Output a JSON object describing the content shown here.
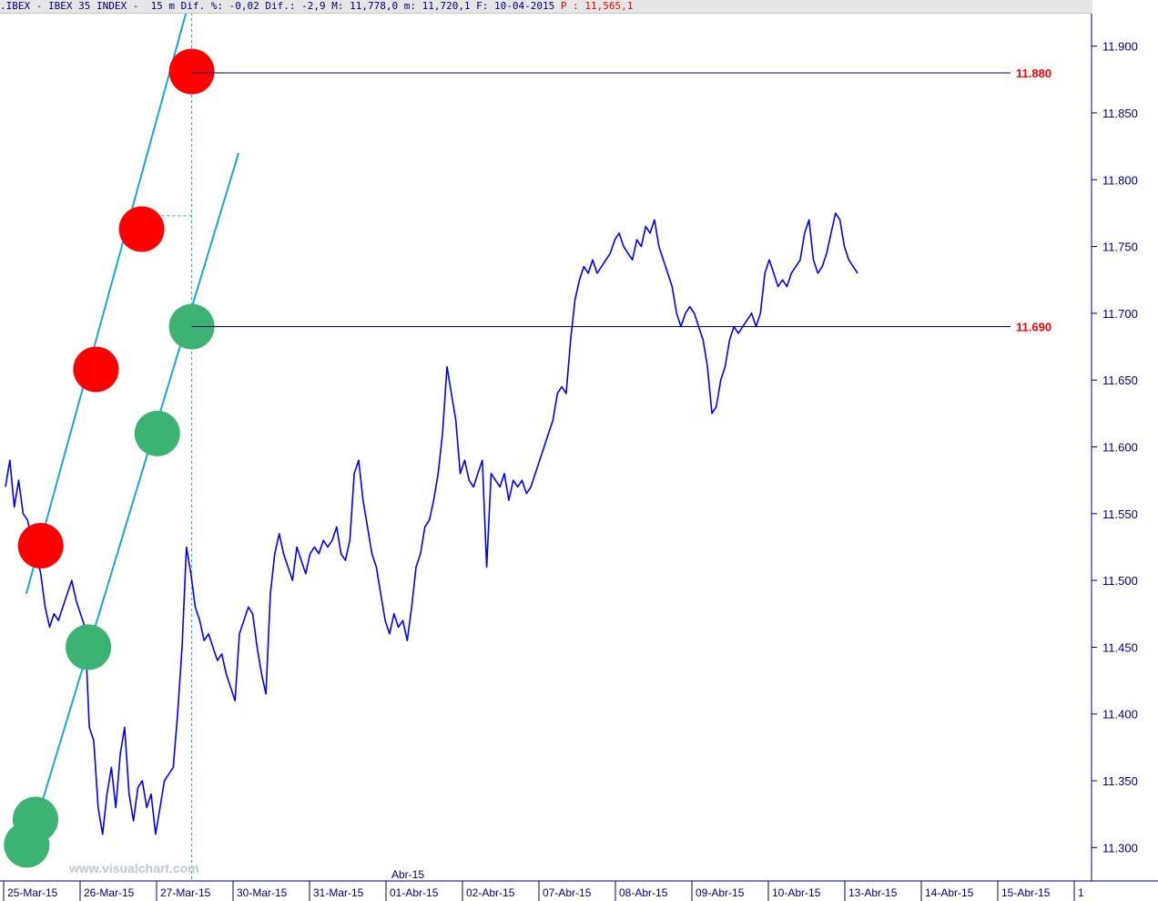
{
  "header": {
    "text": ".IBEX - IBEX 35 INDEX -  15 m Dif. %: -0,02 Dif.: -2,9 M: 11,778,0 m: 11,720,1 F: 10-04-2015 ",
    "price_label": "P : 11,565,1"
  },
  "watermark": "www.visualchart.com",
  "month_label": "Abr-15",
  "colors": {
    "price": "#0000ff",
    "channel": "#1aa8d8",
    "resistance_marker": "#ff0000",
    "support_marker": "#3cb371",
    "axis": "#000080",
    "level_label": "#ff0000"
  },
  "chart_data": {
    "type": "line",
    "title": "",
    "xlabel": "",
    "ylabel": "",
    "x_axis_sessions": [
      "25-Mar-15",
      "26-Mar-15",
      "27-Mar-15",
      "30-Mar-15",
      "31-Mar-15",
      "01-Abr-15",
      "02-Abr-15",
      "07-Abr-15",
      "08-Abr-15",
      "09-Abr-15",
      "10-Abr-15",
      "13-Abr-15",
      "14-Abr-15",
      "15-Abr-15",
      "1"
    ],
    "ylim": [
      11275,
      11925
    ],
    "y_ticks": [
      "11.900",
      "11.850",
      "11.800",
      "11.750",
      "11.700",
      "11.650",
      "11.600",
      "11.550",
      "11.500",
      "11.450",
      "11.400",
      "11.350",
      "11.300"
    ],
    "y_tick_values": [
      11900,
      11850,
      11800,
      11750,
      11700,
      11650,
      11600,
      11550,
      11500,
      11450,
      11400,
      11350,
      11300
    ],
    "series": [
      {
        "values": [
          11570,
          11590,
          11555,
          11575,
          11550,
          11545,
          11530,
          11520,
          11505,
          11480,
          11465,
          11475,
          11470,
          11480,
          11490,
          11500,
          11485,
          11475,
          11465,
          11390,
          11380,
          11330,
          11310,
          11340,
          11360,
          11330,
          11370,
          11390,
          11340,
          11320,
          11345,
          11350,
          11330,
          11340,
          11310,
          11330,
          11350,
          11355,
          11360,
          11400,
          11450,
          11525,
          11505,
          11480,
          11470,
          11455,
          11460,
          11450,
          11440,
          11445,
          11430,
          11420,
          11410,
          11460,
          11470,
          11480,
          11475,
          11450,
          11430,
          11415,
          11490,
          11520,
          11535,
          11520,
          11510,
          11500,
          11525,
          11515,
          11505,
          11520,
          11525,
          11520,
          11530,
          11525,
          11530,
          11540,
          11520,
          11515,
          11530,
          11580,
          11590,
          11560,
          11540,
          11520,
          11510,
          11490,
          11470,
          11460,
          11475,
          11465,
          11470,
          11455,
          11480,
          11510,
          11520,
          11540,
          11545,
          11560,
          11580,
          11610,
          11660,
          11640,
          11620,
          11580,
          11590,
          11575,
          11570,
          11580,
          11590,
          11510,
          11580,
          11575,
          11570,
          11580,
          11560,
          11575,
          11570,
          11575,
          11565,
          11570,
          11580,
          11590,
          11600,
          11610,
          11620,
          11640,
          11645,
          11640,
          11680,
          11710,
          11725,
          11735,
          11730,
          11740,
          11730,
          11735,
          11740,
          11745,
          11755,
          11760,
          11750,
          11745,
          11740,
          11755,
          11750,
          11765,
          11760,
          11770,
          11750,
          11740,
          11730,
          11720,
          11700,
          11690,
          11700,
          11705,
          11700,
          11690,
          11680,
          11660,
          11625,
          11630,
          11650,
          11660,
          11680,
          11690,
          11685,
          11690,
          11695,
          11700,
          11690,
          11700,
          11730,
          11740,
          11730,
          11720,
          11725,
          11720,
          11730,
          11735,
          11740,
          11760,
          11770,
          11740,
          11730,
          11735,
          11745,
          11760,
          11775,
          11770,
          11750,
          11740,
          11735,
          11730
        ]
      }
    ],
    "channel_lines": [
      {
        "role": "upper",
        "from": {
          "index": 5.2,
          "value": 11490
        },
        "to": {
          "index": 46.0,
          "value": 11935
        }
      },
      {
        "role": "lower",
        "from": {
          "index": 5.2,
          "value": 11295
        },
        "to": {
          "index": 58.2,
          "value": 11820
        }
      }
    ],
    "markers": [
      {
        "role": "resistance",
        "index": 8.8,
        "value": 11526
      },
      {
        "role": "resistance",
        "index": 22.6,
        "value": 11658
      },
      {
        "role": "resistance",
        "index": 34.0,
        "value": 11763
      },
      {
        "role": "resistance",
        "index": 46.5,
        "value": 11881
      },
      {
        "role": "support",
        "index": 5.3,
        "value": 11302
      },
      {
        "role": "support",
        "index": 7.5,
        "value": 11321
      },
      {
        "role": "support",
        "index": 20.7,
        "value": 11450
      },
      {
        "role": "support",
        "index": 37.9,
        "value": 11610
      },
      {
        "role": "support",
        "index": 46.5,
        "value": 11690
      }
    ],
    "annotations": [
      {
        "label": "11.880",
        "value": 11880
      },
      {
        "label": "11.690",
        "value": 11690
      }
    ],
    "reference_high": 11773,
    "grid": false,
    "legend": "none"
  }
}
